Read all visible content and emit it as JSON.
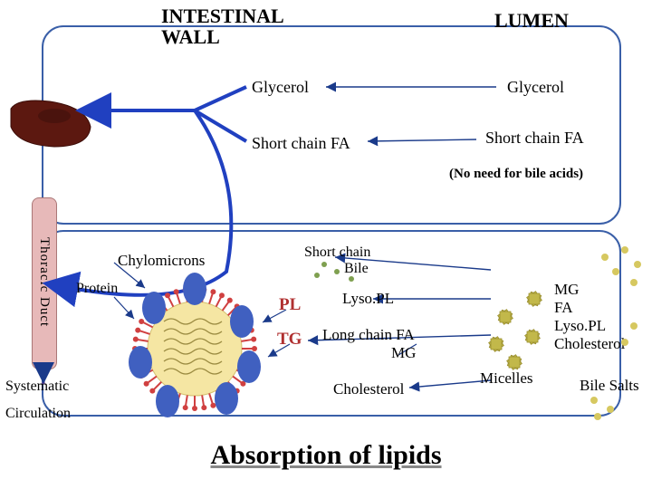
{
  "title_top_left": "INTESTINAL WALL",
  "title_top_right": "LUMEN",
  "glycerol_left": "Glycerol",
  "glycerol_right": "Glycerol",
  "scfa_left": "Short chain FA",
  "scfa_right": "Short  chain FA",
  "no_bile": "(No need for bile acids)",
  "thoracic": "Thoracic Duct",
  "chylo": "Chylomicrons",
  "protein": "Protein",
  "short_chain": "Short chain",
  "bile": "Bile",
  "lysopl": "Lyso.PL",
  "long_fa": "Long chain FA",
  "mg": "MG",
  "cholesterol": "Cholesterol",
  "micelles": "Micelles",
  "bile_salts": "Bile Salts",
  "list_mg": "MG",
  "list_fa": "FA",
  "list_lysopl": "Lyso.PL",
  "list_chol": "Cholesterol",
  "pl": "PL",
  "tg": "TG",
  "systematic": "Systematic",
  "circulation": "Circulation",
  "footer": "Absorption of lipids",
  "colors": {
    "box_border": "#3a5fa8",
    "duct": "#d4a5a5",
    "liver": "#5c1810",
    "blue_arrow": "#2040c0",
    "thin_arrow": "#1a3a8a",
    "micelle_fill": "#c2b84a",
    "bile_green": "#7fa050",
    "chylo_core": "#f5e6a3",
    "chylo_ring": "#d04040",
    "protein_blue": "#4060c0"
  }
}
